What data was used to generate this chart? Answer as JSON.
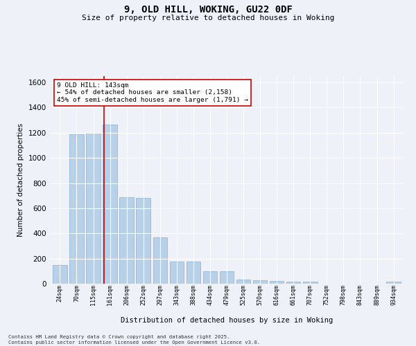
{
  "title_line1": "9, OLD HILL, WOKING, GU22 0DF",
  "title_line2": "Size of property relative to detached houses in Woking",
  "xlabel": "Distribution of detached houses by size in Woking",
  "ylabel": "Number of detached properties",
  "categories": [
    "24sqm",
    "70sqm",
    "115sqm",
    "161sqm",
    "206sqm",
    "252sqm",
    "297sqm",
    "343sqm",
    "388sqm",
    "434sqm",
    "479sqm",
    "525sqm",
    "570sqm",
    "616sqm",
    "661sqm",
    "707sqm",
    "752sqm",
    "798sqm",
    "843sqm",
    "889sqm",
    "934sqm"
  ],
  "values": [
    150,
    1190,
    1200,
    1265,
    690,
    680,
    370,
    175,
    175,
    97,
    97,
    35,
    30,
    20,
    18,
    15,
    0,
    0,
    0,
    0,
    15
  ],
  "bar_color": "#b8d0e8",
  "bar_edge_color": "#8ab0d0",
  "vline_color": "#cc0000",
  "vline_position": 2.65,
  "annotation_text": "9 OLD HILL: 143sqm\n← 54% of detached houses are smaller (2,158)\n45% of semi-detached houses are larger (1,791) →",
  "annotation_box_facecolor": "#ffffff",
  "annotation_box_edgecolor": "#cc0000",
  "ylim": [
    0,
    1650
  ],
  "yticks": [
    0,
    200,
    400,
    600,
    800,
    1000,
    1200,
    1400,
    1600
  ],
  "background_color": "#eef2f8",
  "grid_color": "#ffffff",
  "footer_line1": "Contains HM Land Registry data © Crown copyright and database right 2025.",
  "footer_line2": "Contains public sector information licensed under the Open Government Licence v3.0."
}
